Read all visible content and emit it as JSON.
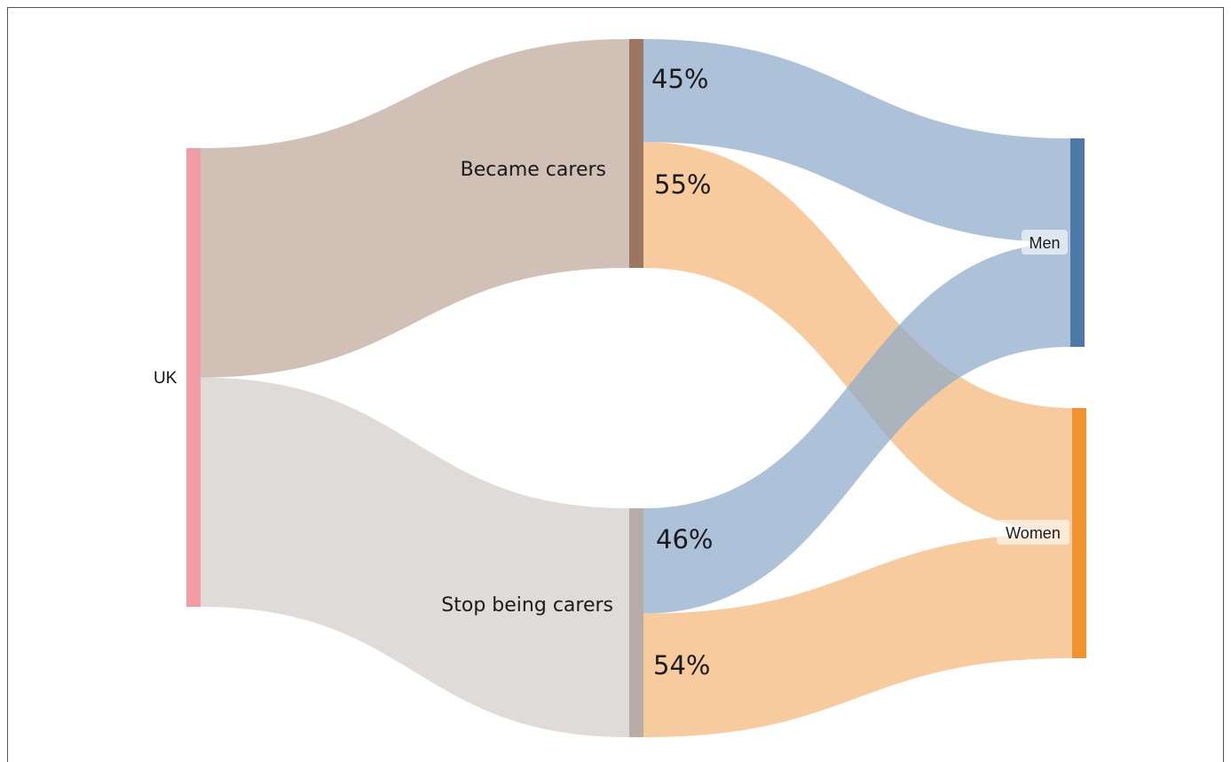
{
  "chart_data": {
    "type": "sankey",
    "nodes": [
      {
        "id": "uk",
        "label": "UK",
        "color": "#f29ca6"
      },
      {
        "id": "became",
        "label": "Became carers",
        "color": "#9c7660"
      },
      {
        "id": "stop",
        "label": "Stop being carers",
        "color": "#b7aca6"
      },
      {
        "id": "men",
        "label": "Men",
        "color": "#4e78a8"
      },
      {
        "id": "women",
        "label": "Women",
        "color": "#f0922e"
      }
    ],
    "links": [
      {
        "source": "uk",
        "target": "became",
        "value": 50,
        "color": "#d1c0b5"
      },
      {
        "source": "uk",
        "target": "stop",
        "value": 50,
        "color": "#dfdbd8"
      },
      {
        "source": "became",
        "target": "men",
        "value": 45,
        "label": "45%",
        "color": "#8eaac9"
      },
      {
        "source": "became",
        "target": "women",
        "value": 55,
        "label": "55%",
        "color": "#f5b779"
      },
      {
        "source": "stop",
        "target": "men",
        "value": 46,
        "label": "46%",
        "color": "#8eaac9"
      },
      {
        "source": "stop",
        "target": "women",
        "value": 54,
        "label": "54%",
        "color": "#f5b779"
      }
    ]
  }
}
